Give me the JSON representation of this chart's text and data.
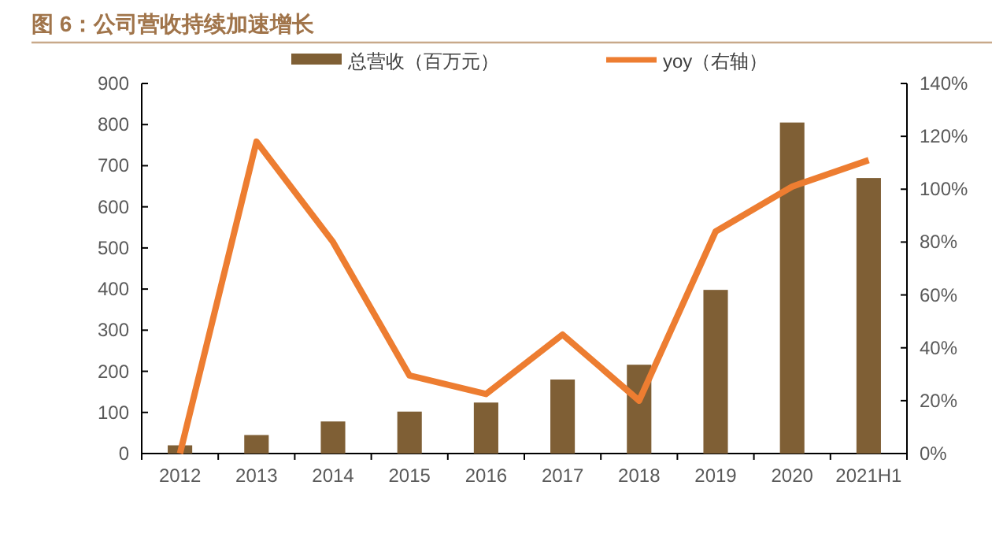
{
  "chart_data": {
    "type": "bar",
    "title": "图 6：公司营收持续加速增长",
    "categories": [
      "2012",
      "2013",
      "2014",
      "2015",
      "2016",
      "2017",
      "2018",
      "2019",
      "2020",
      "2021H1"
    ],
    "series": [
      {
        "name": "总营收（百万元）",
        "color": "#7f5f35",
        "values": [
          20,
          45,
          78,
          102,
          124,
          180,
          216,
          398,
          805,
          670
        ]
      },
      {
        "name": "yoy（右轴）",
        "type": "line",
        "axis": "y2",
        "color": "#ed7d31",
        "values": [
          0,
          118,
          80,
          29.5,
          22.5,
          45,
          20,
          84,
          101,
          111
        ]
      }
    ],
    "ylim": [
      0,
      900
    ],
    "yticks": [
      0,
      100,
      200,
      300,
      400,
      500,
      600,
      700,
      800,
      900
    ],
    "y2lim": [
      0,
      140
    ],
    "y2ticks": [
      {
        "value": 0,
        "label": "0%"
      },
      {
        "value": 20,
        "label": "20%"
      },
      {
        "value": 40,
        "label": "40%"
      },
      {
        "value": 60,
        "label": "60%"
      },
      {
        "value": 80,
        "label": "80%"
      },
      {
        "value": 100,
        "label": "100%"
      },
      {
        "value": 120,
        "label": "120%"
      },
      {
        "value": 140,
        "label": "140%"
      }
    ],
    "legend": "top",
    "grid": false
  }
}
